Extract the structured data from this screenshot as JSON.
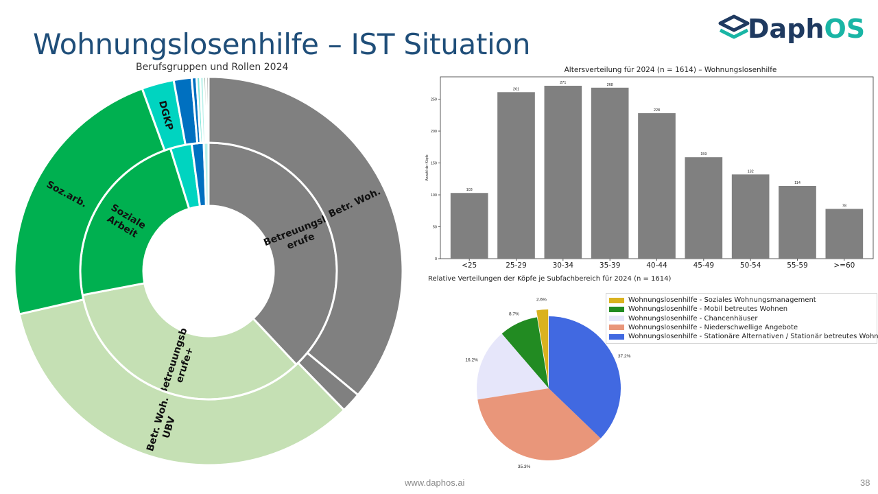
{
  "slide": {
    "title": "Wohnungslosenhilfe – IST Situation",
    "logo_left": "Daph",
    "logo_right": "OS",
    "footer": "www.daphos.ai",
    "page": "38"
  },
  "colors": {
    "title": "#1f4e79",
    "bar": "#808080",
    "sun_gray": "#808080",
    "sun_green": "#00b050",
    "sun_lightgreen": "#c5e0b4",
    "sun_teal": "#00d4c0",
    "sun_blue": "#0070c0"
  },
  "chart_data": [
    {
      "type": "sunburst",
      "title": "Berufsgruppen und Rollen 2024",
      "inner_ring": [
        {
          "label": "Betreuungsberufe",
          "display": "Betreuungsb|erufe",
          "value": 38.0,
          "color": "#808080"
        },
        {
          "label": "Betreuungsberufe+",
          "display": "Betreuungsb|erufe+",
          "value": 34.0,
          "color": "#c5e0b4"
        },
        {
          "label": "Soziale Arbeit",
          "display": "Soziale|Arbeit",
          "value": 23.2,
          "color": "#00b050"
        },
        {
          "label": "",
          "value": 2.7,
          "color": "#00d4c0"
        },
        {
          "label": "",
          "value": 1.5,
          "color": "#0070c0"
        },
        {
          "label": "",
          "value": 0.6,
          "color": "#b8f0ea"
        }
      ],
      "outer_ring": [
        {
          "label": "Betr. Woh.",
          "value": 36.3,
          "color": "#808080"
        },
        {
          "label": "",
          "value": 1.7,
          "color": "#808080"
        },
        {
          "label": "Betr. Woh. UBV",
          "display": "Betr. Woh.|UBV",
          "value": 34.0,
          "color": "#c5e0b4"
        },
        {
          "label": "Soz.arb.",
          "value": 23.2,
          "color": "#00b050"
        },
        {
          "label": "DGKP",
          "value": 2.7,
          "color": "#00d4c0"
        },
        {
          "label": "",
          "value": 1.5,
          "color": "#0070c0"
        },
        {
          "label": "",
          "value": 0.4,
          "color": "#0070c0"
        },
        {
          "label": "",
          "value": 0.3,
          "color": "#7fe6da"
        },
        {
          "label": "",
          "value": 0.3,
          "color": "#b8f0ea"
        },
        {
          "label": "",
          "value": 0.2,
          "color": "#3c7a55"
        },
        {
          "label": "",
          "value": 0.2,
          "color": "#808080"
        }
      ]
    },
    {
      "type": "bar",
      "title": "Altersverteilung für 2024 (n = 1614) – Wohnungslosenhilfe",
      "xlabel": "",
      "ylabel": "Anzahl der Köpfe",
      "categories": [
        "<25",
        "25-29",
        "30-34",
        "35-39",
        "40-44",
        "45-49",
        "50-54",
        "55-59",
        ">=60"
      ],
      "values": [
        103,
        261,
        271,
        268,
        228,
        159,
        132,
        114,
        78
      ],
      "yticks": [
        0,
        50,
        100,
        150,
        200,
        250
      ],
      "ylim": [
        0,
        285
      ]
    },
    {
      "type": "pie",
      "title": "Relative Verteilungen der Köpfe je Subfachbereich für 2024 (n = 1614)",
      "legend_position": "top-right",
      "slices": [
        {
          "label": "Wohnungslosenhilfe - Soziales Wohnungsmanagement",
          "value": 2.6,
          "pct": "2.6%",
          "color": "#dab21f",
          "explode": true
        },
        {
          "label": "Wohnungslosenhilfe - Mobil betreutes Wohnen",
          "value": 8.7,
          "pct": "8.7%",
          "color": "#228b22",
          "explode": false
        },
        {
          "label": "Wohnungslosenhilfe - Chancenhäuser",
          "value": 16.2,
          "pct": "16.2%",
          "color": "#e6e6fa",
          "explode": false
        },
        {
          "label": "Wohnungslosenhilfe - Niederschwellige Angebote",
          "value": 35.3,
          "pct": "35.3%",
          "color": "#e9967a",
          "explode": false
        },
        {
          "label": "Wohnungslosenhilfe - Stationäre Alternativen / Stationär betreutes Wohnen",
          "value": 37.2,
          "pct": "37.2%",
          "color": "#4169e1",
          "explode": false
        }
      ]
    }
  ]
}
